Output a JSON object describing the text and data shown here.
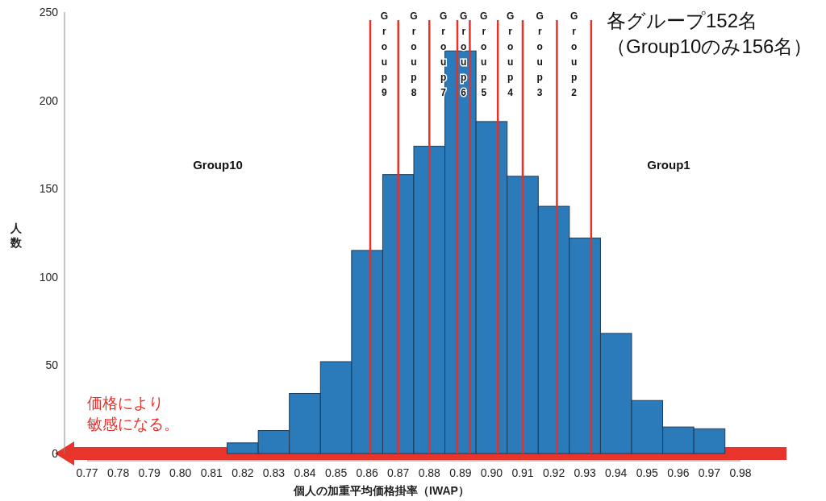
{
  "chart_data": {
    "type": "histogram",
    "xlabel": "個人の加重平均価格掛率（IWAP）",
    "ylabel": "人数",
    "bins": [
      0.815,
      0.825,
      0.835,
      0.845,
      0.855,
      0.865,
      0.875,
      0.885,
      0.895,
      0.905,
      0.915,
      0.925,
      0.935,
      0.945,
      0.955,
      0.965,
      0.975
    ],
    "values": [
      6,
      13,
      34,
      52,
      115,
      158,
      174,
      228,
      188,
      157,
      140,
      122,
      68,
      30,
      15,
      14
    ],
    "color": "#2b7bba",
    "xlim": [
      0.77,
      0.98
    ],
    "xticks": [
      0.77,
      0.78,
      0.79,
      {
        "value": 0.8,
        "label": "0.80"
      },
      0.81,
      0.82,
      0.83,
      0.84,
      0.85,
      0.86,
      0.87,
      0.88,
      0.89,
      {
        "value": 0.9,
        "label": "0.90"
      },
      0.91,
      0.92,
      0.93,
      0.94,
      0.95,
      0.96,
      0.97,
      0.98
    ],
    "ylim": [
      0,
      250
    ],
    "yticks": [
      0,
      50,
      100,
      150,
      200,
      250
    ],
    "ref_lines": [
      {
        "axis": "x",
        "value": 0.861,
        "label": "Group9",
        "color": "#e8302a"
      },
      {
        "axis": "x",
        "value": 0.87,
        "label": "Group8",
        "color": "#e8302a"
      },
      {
        "axis": "x",
        "value": 0.88,
        "label": "Group7",
        "color": "#e8302a"
      },
      {
        "axis": "x",
        "value": 0.889,
        "label": "Group6",
        "color": "#e8302a"
      },
      {
        "axis": "x",
        "value": 0.893,
        "label": "Group5",
        "color": "#e8302a"
      },
      {
        "axis": "x",
        "value": 0.902,
        "label": "Group4",
        "color": "#e8302a"
      },
      {
        "axis": "x",
        "value": 0.91,
        "label": "Group3",
        "color": "#e8302a"
      },
      {
        "axis": "x",
        "value": 0.921,
        "label": "Group2",
        "color": "#e8302a"
      },
      {
        "axis": "x",
        "value": 0.932,
        "color": "#e8302a"
      }
    ],
    "annotations": [
      "各グループ152名（Group10のみ156名）",
      "価格により敏感になる。",
      "Group10",
      "Group1"
    ]
  }
}
